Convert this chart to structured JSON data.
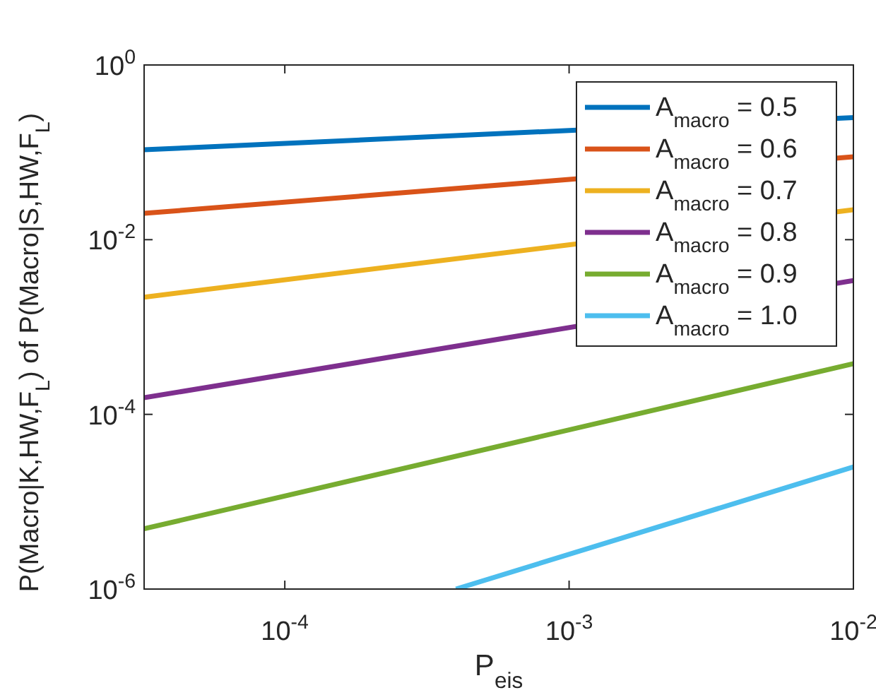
{
  "chart_data": {
    "type": "line",
    "xlabel": "P$_{eis}$",
    "ylabel": "P(Macro|K,HW,F$_{L}$) of P(Macro|S,HW,F$_{L}$)",
    "log": "xy",
    "xlim": [
      3.2e-05,
      0.01
    ],
    "ylim": [
      1e-06,
      1
    ],
    "xticks": [
      {
        "value": 0.0001,
        "label": "10$^{-4}$"
      },
      {
        "value": 0.001,
        "label": "10$^{-3}$"
      },
      {
        "value": 0.01,
        "label": "10$^{-2}$"
      }
    ],
    "yticks": [
      {
        "value": 1e-06,
        "label": "10$^{-6}$"
      },
      {
        "value": 0.0001,
        "label": "10$^{-4}$"
      },
      {
        "value": 0.01,
        "label": "10$^{-2}$"
      },
      {
        "value": 1,
        "label": "10$^{0}$"
      }
    ],
    "grid": false,
    "legend": "top right",
    "line_style": "solid",
    "marker": "none",
    "series": [
      {
        "name": "A$_{macro}$ = 0.5",
        "color": "#0072bd",
        "x": [
          3.2e-05,
          0.01
        ],
        "values": [
          0.107,
          0.25
        ]
      },
      {
        "name": "A$_{macro}$ = 0.6",
        "color": "#d95319",
        "x": [
          3.2e-05,
          0.01
        ],
        "values": [
          0.02,
          0.089
        ]
      },
      {
        "name": "A$_{macro}$ = 0.7",
        "color": "#edb120",
        "x": [
          3.2e-05,
          0.01
        ],
        "values": [
          0.0022,
          0.022
        ]
      },
      {
        "name": "A$_{macro}$ = 0.8",
        "color": "#7e2f8e",
        "x": [
          3.2e-05,
          0.01
        ],
        "values": [
          0.000155,
          0.0034
        ]
      },
      {
        "name": "A$_{macro}$ = 0.9",
        "color": "#77ac30",
        "x": [
          3.2e-05,
          0.01
        ],
        "values": [
          4.9e-06,
          0.00038
        ]
      },
      {
        "name": "A$_{macro}$ = 1.0",
        "color": "#4dbeee",
        "x": [
          0.0004,
          0.01
        ],
        "values": [
          1e-06,
          2.5e-05
        ]
      }
    ]
  }
}
